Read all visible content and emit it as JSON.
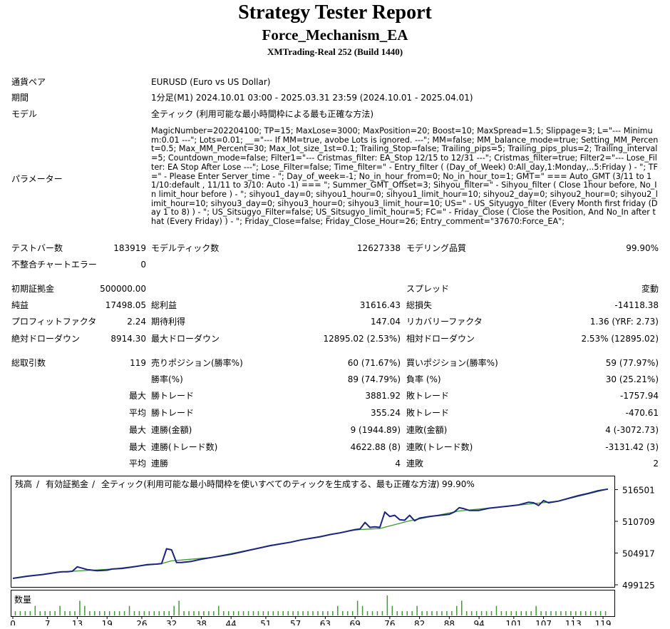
{
  "header": {
    "title": "Strategy Tester Report",
    "ea_name": "Force_Mechanism_EA",
    "server": "XMTrading-Real 252 (Build 1440)"
  },
  "info": {
    "symbol_label": "通貨ペア",
    "symbol_value": "EURUSD (Euro vs US Dollar)",
    "period_label": "期間",
    "period_value": "1分足(M1) 2024.10.01 03:00 - 2025.03.31 23:59 (2024.10.01 - 2025.04.01)",
    "model_label": "モデル",
    "model_value": "全ティック (利用可能な最小時間枠による最も正確な方法)",
    "params_label": "パラメーター",
    "params_value": "MagicNumber=202204100; TP=15; MaxLose=3000; MaxPosition=20; Boost=10; MaxSpread=1.5; Slippage=3; L=\"--- Minimum:0.01 ---\"; Lots=0.01; __=\"--- If MM=true, avobe Lots is ignored. ---\"; MM=false; MM_balance_mode=true; Setting_MM_Percent=0.5; Max_MM_Percent=30; Max_lot_size_1st=0.1; Trailing_Stop=false; Trailing_pips=5; Trailing_pips_plus=2; Trailing_interval=5; Countdown_mode=false; Filter1=\"--- Cristmas_filter: EA_Stop 12/15 to 12/31 ---\"; Cristmas_filter=true; Filter2=\"--- Lose_Filter: EA Stop After Lose ---\"; Lose_Filter=false; Time_filter=\" - Entry_filter ( (Day_of_Week) 0:All_day,1:Monday,..5:Friday ) - \"; TF=\" - Please Enter Server_time - \"; Day_of_week=-1; No_in_hour_from=0; No_in_hour_to=1; GMT=\" === Auto_GMT (3/11 to 11/10:default , 11/11 to 3/10: Auto -1) === \"; Summer_GMT_Offset=3; Sihyou_filter=\" - Sihyou_filter ( Close 1hour before, No_In limit_hour before ) - \"; sihyou1_day=0; sihyou1_hour=0; sihyou1_limit_hour=10; sihyou2_day=0; sihyou2_hour=0; sihyou2_limit_hour=10; sihyou3_day=0; sihyou3_hour=0; sihyou3_limit_hour=10; US=\" - US_Sityugyo_filter (Every Month first friday (Day 1 to 8) ) - \"; US_Sitsugyo_Filter=false; US_Sitsugyo_limit_hour=5; FC=\" - Friday_Close ( Close the Position, And No_In after that (Every Friday) ) - \"; Friday_Close=false; Friday_Close_Hour=26; Entry_comment=\"37670:Force_EA\";"
  },
  "stats": {
    "bars_label": "テストバー数",
    "bars_value": "183919",
    "ticks_label": "モデルティック数",
    "ticks_value": "12627338",
    "quality_label": "モデリング品質",
    "quality_value": "99.90%",
    "mismatch_label": "不整合チャートエラー",
    "mismatch_value": "0",
    "deposit_label": "初期証拠金",
    "deposit_value": "500000.00",
    "spread_label": "スプレッド",
    "spread_value": "変動",
    "net_label": "純益",
    "net_value": "17498.05",
    "gross_profit_label": "総利益",
    "gross_profit_value": "31616.43",
    "gross_loss_label": "総損失",
    "gross_loss_value": "-14118.38",
    "pf_label": "プロフィットファクタ",
    "pf_value": "2.24",
    "expected_label": "期待利得",
    "expected_value": "147.04",
    "recovery_label": "リカバリーファクタ",
    "recovery_value": "1.36 (YRF: 2.73)",
    "abs_dd_label": "絶対ドローダウン",
    "abs_dd_value": "8914.30",
    "max_dd_label": "最大ドローダウン",
    "max_dd_value": "12895.02 (2.53%)",
    "rel_dd_label": "相対ドローダウン",
    "rel_dd_value": "2.53% (12895.02)",
    "trades_label": "総取引数",
    "trades_value": "119",
    "short_label": "売りポジション(勝率%)",
    "short_value": "60 (71.67%)",
    "long_label": "買いポジション(勝率%)",
    "long_value": "59 (77.97%)",
    "winrate_label": "勝率(%)",
    "winrate_value": "89 (74.79%)",
    "lossrate_label": "負率 (%)",
    "lossrate_value": "30 (25.21%)",
    "largest_label": "最大",
    "avg_label": "平均",
    "max_label": "最大",
    "max2_label": "最大",
    "avg2_label": "平均",
    "largest_win_label": "勝トレード",
    "largest_win_value": "3881.92",
    "largest_loss_label": "敗トレード",
    "largest_loss_value": "-1757.94",
    "avg_win_label": "勝トレード",
    "avg_win_value": "355.24",
    "avg_loss_label": "敗トレード",
    "avg_loss_value": "-470.61",
    "consec_wins_amt_label": "連勝(金額)",
    "consec_wins_amt_value": "9 (1944.89)",
    "consec_losses_amt_label": "連敗(金額)",
    "consec_losses_amt_value": "4 (-3072.73)",
    "consec_wins_cnt_label": "連勝(トレード数)",
    "consec_wins_cnt_value": "4622.88 (8)",
    "consec_losses_cnt_label": "連敗(トレード数)",
    "consec_losses_cnt_value": "-3131.42 (3)",
    "avg_cons_wins_label": "連勝",
    "avg_cons_wins_value": "4",
    "avg_cons_losses_label": "連敗",
    "avg_cons_losses_value": "2"
  },
  "chart_data": {
    "type": "line",
    "legend": {
      "balance": "残高",
      "sep1": " / ",
      "equity": "有効証拠金",
      "sep2": " / ",
      "model": "全ティック(利用可能な最小時間枠を使いすべてのティックを生成する、最も正確な方法)",
      "sep3": " / ",
      "quality": "99.90%"
    },
    "colors": {
      "balance": "#1a237e",
      "equity": "#3c9a32",
      "label_balance": "#1a1aa0",
      "label_equity": "#2e9a2e",
      "volume": "#3c9a32"
    },
    "ylim": [
      499125,
      518000
    ],
    "yticks": [
      "516501",
      "510709",
      "504917",
      "499125"
    ],
    "xlim": [
      0,
      121
    ],
    "xticks": [
      "0",
      "7",
      "13",
      "19",
      "26",
      "32",
      "38",
      "44",
      "51",
      "57",
      "63",
      "69",
      "76",
      "82",
      "88",
      "94",
      "101",
      "107",
      "113",
      "119"
    ],
    "volume_label": "数量",
    "series": [
      {
        "name": "残高",
        "x": [
          0,
          3,
          6,
          9,
          10,
          11,
          12,
          13,
          15,
          17,
          19,
          20,
          22,
          25,
          27,
          29,
          30,
          31,
          32,
          33,
          34,
          36,
          38,
          40,
          42,
          44,
          46,
          48,
          50,
          52,
          54,
          56,
          58,
          60,
          62,
          64,
          66,
          68,
          69,
          70,
          71,
          72,
          73,
          74,
          75,
          76,
          77,
          78,
          79,
          80,
          81,
          82,
          84,
          86,
          88,
          89,
          90,
          91,
          92,
          93,
          94,
          96,
          98,
          100,
          102,
          104,
          105,
          106,
          107,
          108,
          110,
          112,
          114,
          116,
          118,
          120
        ],
        "y": [
          500300,
          500700,
          501000,
          501400,
          501500,
          501500,
          501600,
          502400,
          501900,
          501700,
          501800,
          502000,
          502100,
          502500,
          502800,
          502900,
          503000,
          505700,
          505500,
          503200,
          503200,
          503400,
          503800,
          504100,
          504400,
          504700,
          505100,
          505500,
          505900,
          506300,
          506600,
          506900,
          507300,
          507600,
          507900,
          508300,
          508600,
          509000,
          509200,
          509300,
          510500,
          509600,
          509700,
          509600,
          512400,
          511600,
          511800,
          511000,
          510900,
          511800,
          510800,
          511300,
          511600,
          511800,
          512000,
          512400,
          513200,
          513000,
          512700,
          512700,
          512700,
          513100,
          513300,
          513500,
          513700,
          514200,
          514100,
          513600,
          514500,
          514100,
          514400,
          514900,
          515400,
          515800,
          516300,
          516600
        ]
      },
      {
        "name": "有効証拠金",
        "x": [
          0,
          10,
          20,
          30,
          32,
          40,
          50,
          60,
          68,
          70,
          72,
          74,
          80,
          90,
          100,
          110,
          120
        ],
        "y": [
          500300,
          501500,
          502000,
          503000,
          503500,
          504100,
          505900,
          507600,
          509000,
          509200,
          509300,
          509400,
          510800,
          512600,
          513500,
          514400,
          516600
        ]
      }
    ],
    "volume": [
      1,
      1,
      1,
      1,
      2,
      1,
      1,
      1,
      1,
      2,
      1,
      1,
      1,
      3,
      2,
      1,
      1,
      1,
      1,
      1,
      1,
      1,
      1,
      2,
      1,
      1,
      1,
      1,
      1,
      1,
      1,
      1,
      2,
      3,
      1,
      1,
      1,
      1,
      1,
      1,
      1,
      2,
      1,
      1,
      1,
      1,
      1,
      1,
      1,
      1,
      1,
      1,
      1,
      1,
      1,
      1,
      1,
      1,
      1,
      1,
      1,
      1,
      1,
      1,
      1,
      2,
      1,
      1,
      1,
      3,
      2,
      1,
      1,
      1,
      1,
      4,
      2,
      1,
      1,
      1,
      1,
      2,
      1,
      1,
      1,
      1,
      1,
      1,
      1,
      2,
      3,
      1,
      1,
      1,
      1,
      1,
      1,
      2,
      1,
      1,
      1,
      1,
      1,
      1,
      1,
      2,
      1,
      1,
      1,
      1,
      1,
      1,
      1,
      1,
      1,
      1,
      1,
      1,
      1,
      1
    ]
  }
}
